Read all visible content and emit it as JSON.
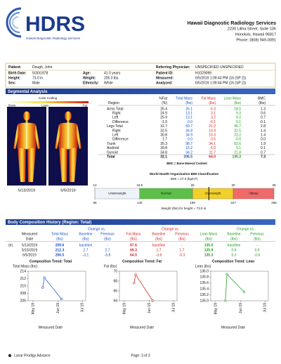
{
  "header": {
    "logo": "HDRS",
    "logo_subtitle": "Hawaii Diagnostic Radiology Services",
    "company": "Hawaii Diagnostic Radiology Services",
    "address": [
      "2230 Liliha Street, Suite 106",
      "Honolulu, Hawaii  96817",
      "Phone: (808) 949-0091"
    ]
  },
  "patient": {
    "left": [
      {
        "label": "Patient:",
        "value": "Dough, John"
      },
      {
        "label": "Birth Date:",
        "value": "5/30/1978"
      },
      {
        "label": "Height:",
        "value": "73.0 in."
      },
      {
        "label": "Sex:",
        "value": "Male"
      }
    ],
    "middle": [
      {
        "label": "Age:",
        "value": "41.0 years"
      },
      {
        "label": "Weight:",
        "value": "205.0 lbs."
      },
      {
        "label": "Ethnicity:",
        "value": "White"
      }
    ],
    "right": [
      {
        "label": "Referring Physician:",
        "value": "UNSPECIFIED UNSPECIFIED"
      },
      {
        "label": "Patient ID:",
        "value": "H1029099"
      },
      {
        "label": "Measured:",
        "value": "6/5/2019 1:09:43 PM (16 (SP 2))"
      },
      {
        "label": "Analyzed:",
        "value": "6/5/2019 1:09:44 PM (16 (SP 2))"
      }
    ]
  },
  "segmental": {
    "title": "Segmental Analysis",
    "color_coding": "Color Coding",
    "legend": [
      "Bone",
      "Lean",
      "Fat"
    ],
    "image_dates": [
      "5/13/2019",
      "6/5/2019"
    ],
    "columns": [
      {
        "name": "Region"
      },
      {
        "name": "%Fat",
        "unit": "(%)"
      },
      {
        "name": "Total Mass",
        "unit": "(lbs)",
        "color": "#1a4fc4"
      },
      {
        "name": "Fat Mass",
        "unit": "(lbs)",
        "color": "#d42020"
      },
      {
        "name": "Lean Mass",
        "unit": "(lbs)",
        "color": "#1a9a1a"
      },
      {
        "name": "BMC",
        "unit": "(lbs)"
      }
    ],
    "rows": [
      [
        "Arms Total",
        "25.4",
        "26.1",
        "6.3",
        "18.5",
        "1.3"
      ],
      [
        "Right",
        "24.9",
        "13.1",
        "3.1",
        "9.3",
        "0.6"
      ],
      [
        "Left",
        "25.9",
        "13.1",
        "3.2",
        "9.2",
        "0.7"
      ],
      [
        "Difference",
        "-1.0",
        "0.0",
        "-0.1",
        "0.1",
        "-0.1"
      ],
      [
        "Legs Total",
        "31.7",
        "69.7",
        "21.2",
        "45.7",
        "2.8"
      ],
      [
        "Right",
        "32.5",
        "34.8",
        "10.9",
        "22.5",
        "1.4"
      ],
      [
        "Left",
        "30.8",
        "34.9",
        "10.3",
        "23.2",
        "1.4"
      ],
      [
        "Difference",
        "1.7",
        "0.0",
        "0.5",
        "-0.6",
        "0.0"
      ],
      [
        "Trunk",
        "35.3",
        "98.7",
        "34.1",
        "62.6",
        "1.9"
      ],
      [
        "Android",
        "39.8",
        "15.2",
        "6.0",
        "9.1",
        "0.1"
      ],
      [
        "Gynoid",
        "34.8",
        "34.2",
        "11.7",
        "21.8",
        "0.7"
      ],
      [
        "Total",
        "32.1",
        "206.5",
        "64.0",
        "135.3",
        "7.3"
      ]
    ],
    "footnote": "BMC = Bone Mineral Content"
  },
  "bmi": {
    "title": "World Health Organization BMI Classification",
    "bmi": {
      "value": 27.0,
      "label": "BMI = 27.0 (kg/m²)"
    },
    "scale": [
      13,
      18.5,
      25,
      30,
      35
    ],
    "weights": [
      99,
      140,
      189,
      227,
      265
    ],
    "classes": [
      {
        "name": "Underweight",
        "color": "#eef3fa"
      },
      {
        "name": "Normal",
        "color": "#5cc048"
      },
      {
        "name": "Overweight",
        "color": "#f2cf2a"
      },
      {
        "name": "Obese",
        "color": "#f06a6a"
      }
    ],
    "caption": "Weight (lbs) for height = 73.0 in."
  },
  "history": {
    "title": "Body Composition History (Region: Total)",
    "groups": [
      {
        "text": "Change vs.",
        "color": "#1a4fc4"
      },
      {
        "text": "Change vs.",
        "color": "#d42020"
      },
      {
        "text": "Change vs.",
        "color": "#1a9a1a"
      }
    ],
    "columns": [
      {
        "name": "Measured",
        "unit": "Date"
      },
      {
        "name": "Total Mass",
        "unit": "(lbs)",
        "color": "#1a4fc4"
      },
      {
        "name": "Baseline",
        "unit": "(lbs)",
        "color": "#1a4fc4"
      },
      {
        "name": "Previous",
        "unit": "(lbs)",
        "color": "#1a4fc4"
      },
      {
        "name": "Fat Mass",
        "unit": "(lbs)",
        "color": "#d42020"
      },
      {
        "name": "Baseline",
        "unit": "(lbs)",
        "color": "#d42020"
      },
      {
        "name": "Previous",
        "unit": "(lbs)",
        "color": "#d42020"
      },
      {
        "name": "Lean Mass",
        "unit": "(lbs)",
        "color": "#1a9a1a"
      },
      {
        "name": "Baseline",
        "unit": "(lbs)",
        "color": "#1a9a1a"
      },
      {
        "name": "Previous",
        "unit": "(lbs)",
        "color": "#1a9a1a"
      }
    ],
    "rows": [
      {
        "flag": "(e)",
        "cells": [
          "5/13/2019",
          "209.6",
          "baseline",
          "-",
          "67.6",
          "baseline",
          "-",
          "135.0",
          "baseline",
          "-"
        ]
      },
      {
        "cells": [
          "5/15/2019",
          "212.3",
          "2.7",
          "2.7",
          "69.3",
          "1.7",
          "1.7",
          "135.9",
          "0.9",
          "0.9"
        ]
      },
      {
        "cells": [
          "6/5/2019",
          "206.5",
          "-3.1",
          "-5.8",
          "64.0",
          "-3.6",
          "-5.3",
          "135.3",
          "0.3",
          "-0.6"
        ]
      }
    ]
  },
  "chart_data": [
    {
      "type": "line",
      "title": "Composition Trend: Total",
      "ylabel": "Total Mass (lbs)",
      "xlabel": "Measured Date",
      "color": "#2b5bd0",
      "x": [
        "2019-05-13",
        "2019-05-15",
        "2019-06-05"
      ],
      "values": [
        209.6,
        212.3,
        206.5
      ],
      "xlim": [
        "2019-04-25",
        "2019-07-05"
      ],
      "xticks": [
        {
          "value": "2019-05-01",
          "label": "May 19"
        },
        {
          "value": "2019-06-01",
          "label": "Jun 19"
        },
        {
          "value": "2019-07-01",
          "label": "Jul 19"
        }
      ],
      "ylim": [
        206,
        214
      ],
      "yticks": [
        206,
        208,
        210,
        212,
        214
      ]
    },
    {
      "type": "line",
      "title": "Composition Trend: Fat",
      "ylabel": "Fat (lbs)",
      "xlabel": "Measured Date",
      "color": "#d03030",
      "x": [
        "2019-05-13",
        "2019-05-15",
        "2019-06-05"
      ],
      "values": [
        67.6,
        69.3,
        64.0
      ],
      "xlim": [
        "2019-04-25",
        "2019-07-05"
      ],
      "xticks": [
        {
          "value": "2019-05-01",
          "label": "May 19"
        },
        {
          "value": "2019-06-01",
          "label": "Jun 19"
        },
        {
          "value": "2019-07-01",
          "label": "Jul 19"
        }
      ],
      "ylim": [
        64,
        70
      ],
      "yticks": [
        64,
        66,
        68,
        70
      ]
    },
    {
      "type": "line",
      "title": "Composition Trend: Lean",
      "ylabel": "Lean (lbs)",
      "xlabel": "Measured Date",
      "color": "#30a030",
      "x": [
        "2019-05-13",
        "2019-05-15",
        "2019-06-05"
      ],
      "values": [
        135.0,
        135.9,
        135.3
      ],
      "xlim": [
        "2019-04-25",
        "2019-07-05"
      ],
      "xticks": [
        {
          "value": "2019-05-01",
          "label": "May 19"
        },
        {
          "value": "2019-06-01",
          "label": "Jun 19"
        },
        {
          "value": "2019-07-01",
          "label": "Jul 19"
        }
      ],
      "ylim": [
        135.0,
        136.0
      ],
      "yticks": [
        {
          "value": 135.0,
          "label": "135.0"
        },
        135.2,
        135.4,
        135.6,
        135.8,
        {
          "value": 136.0,
          "label": "136.0"
        }
      ]
    }
  ],
  "footer": {
    "device": "Lunar Prodigy Advance",
    "page": "Page: 3 of 3"
  }
}
